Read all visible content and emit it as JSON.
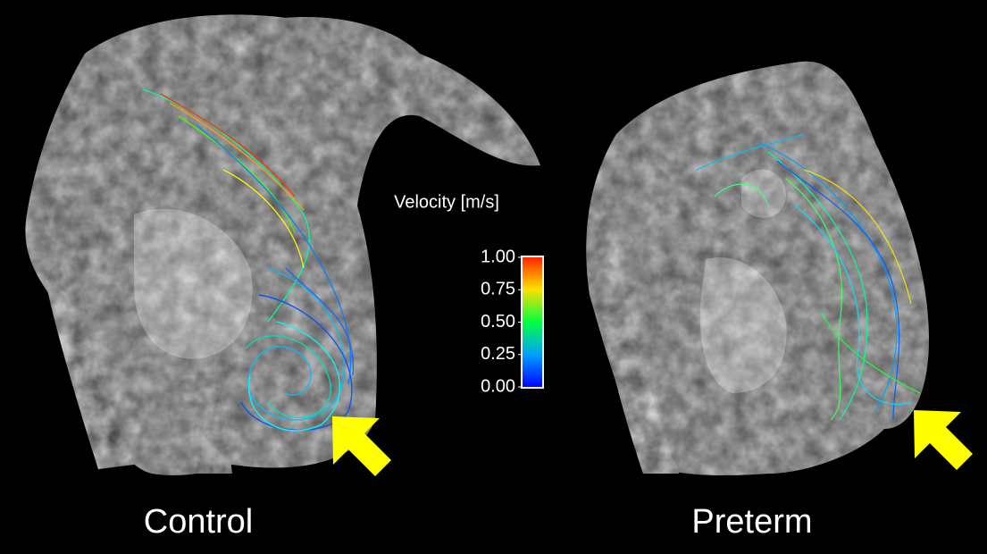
{
  "panels": [
    {
      "label": "Control"
    },
    {
      "label": "Preterm"
    }
  ],
  "colorbar": {
    "title": "Velocity [m/s]",
    "range": [
      0,
      1
    ],
    "ticks": [
      {
        "value": 1,
        "label": "1.00"
      },
      {
        "value": 0.75,
        "label": "0.75"
      },
      {
        "value": 0.5,
        "label": "0.50"
      },
      {
        "value": 0.25,
        "label": "0.25"
      },
      {
        "value": 0,
        "label": "0.00"
      }
    ]
  }
}
